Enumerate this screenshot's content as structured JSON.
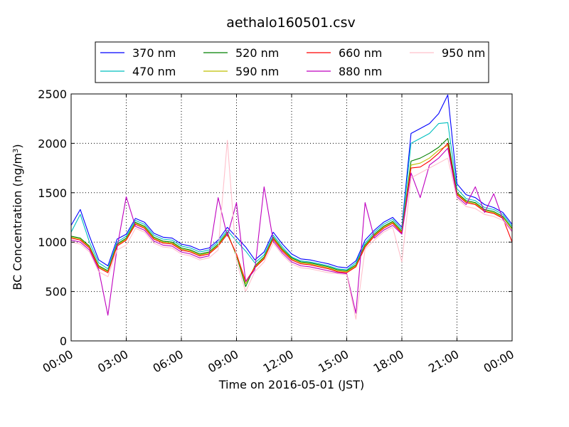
{
  "chart_data": {
    "type": "line",
    "title": "aethalo160501.csv",
    "xlabel": "Time on 2016-05-01 (JST)",
    "ylabel_prefix": "BC Concentration (ng/m",
    "ylabel_sup": "3",
    "ylabel_suffix": ")",
    "ylim": [
      0,
      2500
    ],
    "xlim": [
      "2016-05-01 00:00",
      "2016-05-02 00:00"
    ],
    "x_ticks": [
      {
        "hour": 0,
        "label": "00:00"
      },
      {
        "hour": 3,
        "label": "03:00"
      },
      {
        "hour": 6,
        "label": "06:00"
      },
      {
        "hour": 9,
        "label": "09:00"
      },
      {
        "hour": 12,
        "label": "12:00"
      },
      {
        "hour": 15,
        "label": "15:00"
      },
      {
        "hour": 18,
        "label": "18:00"
      },
      {
        "hour": 21,
        "label": "21:00"
      },
      {
        "hour": 24,
        "label": "00:00"
      }
    ],
    "y_ticks": [
      {
        "value": 0,
        "label": "0"
      },
      {
        "value": 500,
        "label": "500"
      },
      {
        "value": 1000,
        "label": "1000"
      },
      {
        "value": 1500,
        "label": "1500"
      },
      {
        "value": 2000,
        "label": "2000"
      },
      {
        "value": 2500,
        "label": "2500"
      }
    ],
    "grid": true,
    "legend_position": "top",
    "x_hours": [
      0,
      0.5,
      1,
      1.5,
      2,
      2.5,
      3,
      3.5,
      4,
      4.5,
      5,
      5.5,
      6,
      6.5,
      7,
      7.5,
      8,
      8.5,
      9,
      9.5,
      10,
      10.5,
      11,
      11.5,
      12,
      12.5,
      13,
      13.5,
      14,
      14.5,
      15,
      15.5,
      16,
      16.5,
      17,
      17.5,
      18,
      18.5,
      19,
      19.5,
      20,
      20.5,
      21,
      21.5,
      22,
      22.5,
      23,
      23.5,
      24
    ],
    "series": [
      {
        "name": "370 nm",
        "color": "#0000ff",
        "values": [
          1170,
          1330,
          1060,
          820,
          760,
          1030,
          1080,
          1240,
          1200,
          1090,
          1050,
          1040,
          980,
          960,
          920,
          940,
          1020,
          1150,
          1050,
          950,
          820,
          900,
          1100,
          980,
          880,
          830,
          820,
          800,
          780,
          750,
          740,
          810,
          1020,
          1120,
          1200,
          1250,
          1150,
          2100,
          2150,
          2200,
          2300,
          2490,
          1590,
          1480,
          1450,
          1380,
          1350,
          1300,
          1180
        ]
      },
      {
        "name": "470 nm",
        "color": "#00bfbf",
        "values": [
          1100,
          1280,
          1000,
          790,
          730,
          1000,
          1060,
          1220,
          1180,
          1070,
          1030,
          1020,
          960,
          940,
          900,
          920,
          1000,
          1120,
          1010,
          910,
          790,
          870,
          1070,
          950,
          850,
          810,
          800,
          780,
          760,
          730,
          720,
          790,
          990,
          1100,
          1180,
          1230,
          1130,
          2000,
          2050,
          2100,
          2200,
          2210,
          1540,
          1440,
          1420,
          1350,
          1330,
          1280,
          1160
        ]
      },
      {
        "name": "520 nm",
        "color": "#008000",
        "values": [
          1060,
          1040,
          960,
          760,
          710,
          980,
          1040,
          1200,
          1160,
          1050,
          1010,
          1000,
          940,
          920,
          880,
          900,
          980,
          1100,
          860,
          550,
          760,
          850,
          1050,
          930,
          840,
          800,
          790,
          770,
          750,
          720,
          710,
          770,
          970,
          1080,
          1160,
          1210,
          1110,
          1820,
          1850,
          1900,
          1960,
          2050,
          1500,
          1420,
          1400,
          1330,
          1310,
          1260,
          1140
        ]
      },
      {
        "name": "590 nm",
        "color": "#bfbf00",
        "values": [
          1050,
          1030,
          950,
          750,
          700,
          970,
          1030,
          1190,
          1150,
          1040,
          1000,
          990,
          930,
          910,
          870,
          890,
          970,
          1090,
          870,
          580,
          750,
          840,
          1040,
          920,
          830,
          790,
          780,
          760,
          740,
          710,
          700,
          760,
          960,
          1070,
          1150,
          1200,
          1100,
          1780,
          1800,
          1850,
          1930,
          1980,
          1490,
          1410,
          1390,
          1320,
          1300,
          1250,
          1130
        ]
      },
      {
        "name": "660 nm",
        "color": "#ff0000",
        "values": [
          1040,
          1020,
          940,
          740,
          690,
          960,
          1020,
          1180,
          1140,
          1030,
          990,
          980,
          920,
          900,
          860,
          880,
          960,
          1080,
          880,
          600,
          740,
          830,
          1030,
          910,
          820,
          780,
          770,
          750,
          730,
          700,
          690,
          750,
          950,
          1060,
          1140,
          1190,
          1090,
          1750,
          1760,
          1820,
          1900,
          2000,
          1480,
          1400,
          1380,
          1310,
          1290,
          1240,
          1000
        ]
      },
      {
        "name": "880 nm",
        "color": "#bf00bf",
        "values": [
          1020,
          1000,
          920,
          720,
          260,
          940,
          1460,
          1160,
          1120,
          1010,
          970,
          960,
          900,
          880,
          840,
          860,
          1450,
          1060,
          1400,
          600,
          720,
          1560,
          1010,
          890,
          800,
          760,
          750,
          730,
          710,
          690,
          680,
          280,
          1400,
          1040,
          1120,
          1170,
          1080,
          1700,
          1450,
          1780,
          1850,
          1950,
          1460,
          1380,
          1560,
          1300,
          1490,
          1230,
          1110
        ]
      },
      {
        "name": "950 nm",
        "color": "#ffc0cb",
        "values": [
          1000,
          980,
          900,
          700,
          650,
          920,
          970,
          1140,
          1100,
          990,
          950,
          940,
          880,
          860,
          820,
          840,
          920,
          2030,
          800,
          500,
          700,
          800,
          990,
          870,
          780,
          740,
          730,
          710,
          690,
          680,
          670,
          220,
          930,
          1020,
          1100,
          1150,
          800,
          1650,
          1700,
          1750,
          1800,
          1850,
          1440,
          1360,
          1340,
          1280,
          1260,
          1220,
          1100
        ]
      }
    ]
  }
}
